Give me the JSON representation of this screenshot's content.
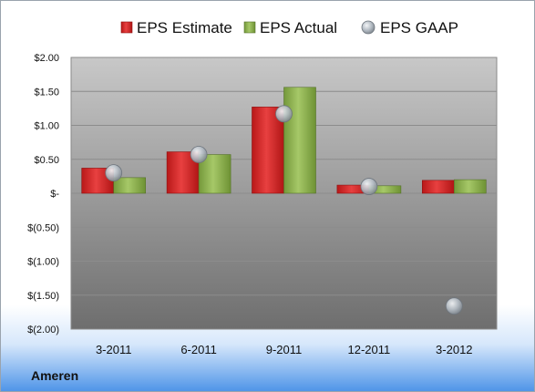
{
  "company": "Ameren",
  "colors": {
    "estimate": "#d42a2a",
    "actual": "#8cb24b",
    "gaap": "#a8b0b8",
    "plot_top": "#c8c8c8",
    "plot_bottom": "#6e6e6e"
  },
  "chart_data": {
    "type": "bar",
    "categories": [
      "3-2011",
      "6-2011",
      "9-2011",
      "12-2011",
      "3-2012"
    ],
    "series": [
      {
        "name": "EPS Estimate",
        "kind": "bar",
        "values": [
          0.37,
          0.61,
          1.27,
          0.12,
          0.19
        ]
      },
      {
        "name": "EPS Actual",
        "kind": "bar",
        "values": [
          0.23,
          0.57,
          1.56,
          0.11,
          0.2
        ]
      },
      {
        "name": "EPS GAAP",
        "kind": "marker",
        "values": [
          0.3,
          0.57,
          1.17,
          0.1,
          -1.66
        ]
      }
    ],
    "ylim": [
      -2.0,
      2.0
    ],
    "yticks": [
      2.0,
      1.5,
      1.0,
      0.5,
      0,
      -0.5,
      -1.0,
      -1.5,
      -2.0
    ],
    "ytick_labels": [
      "$2.00",
      "$1.50",
      "$1.00",
      "$0.50",
      "$-",
      "$(0.50)",
      "$(1.00)",
      "$(1.50)",
      "$(2.00)"
    ],
    "grid": true,
    "legend_position": "top"
  }
}
